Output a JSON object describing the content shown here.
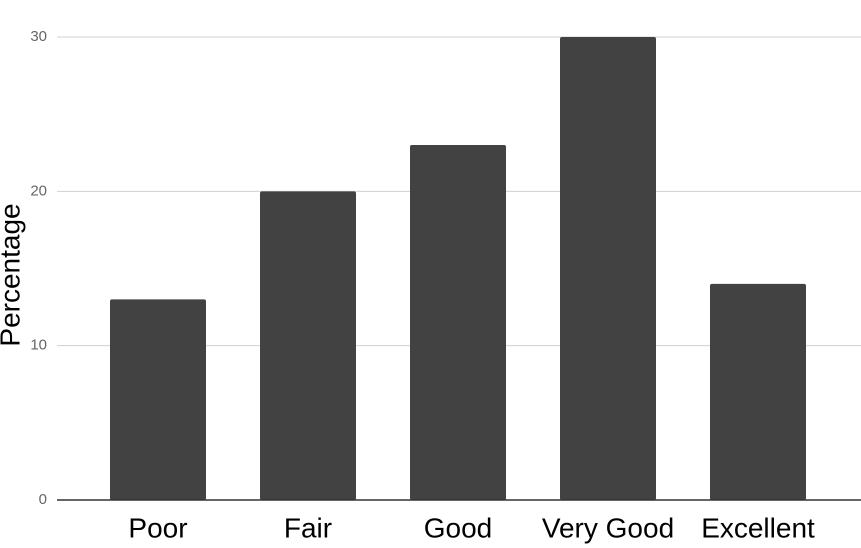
{
  "chart_data": {
    "type": "bar",
    "y_label": "Percentage",
    "categories": [
      "Poor",
      "Fair",
      "Good",
      "Very Good",
      "Excellent"
    ],
    "values": [
      13,
      20,
      23,
      30,
      14
    ],
    "color": "#424242",
    "ylim": [
      0,
      30
    ],
    "yticks": [
      0,
      10,
      20,
      30
    ],
    "grid": true
  }
}
